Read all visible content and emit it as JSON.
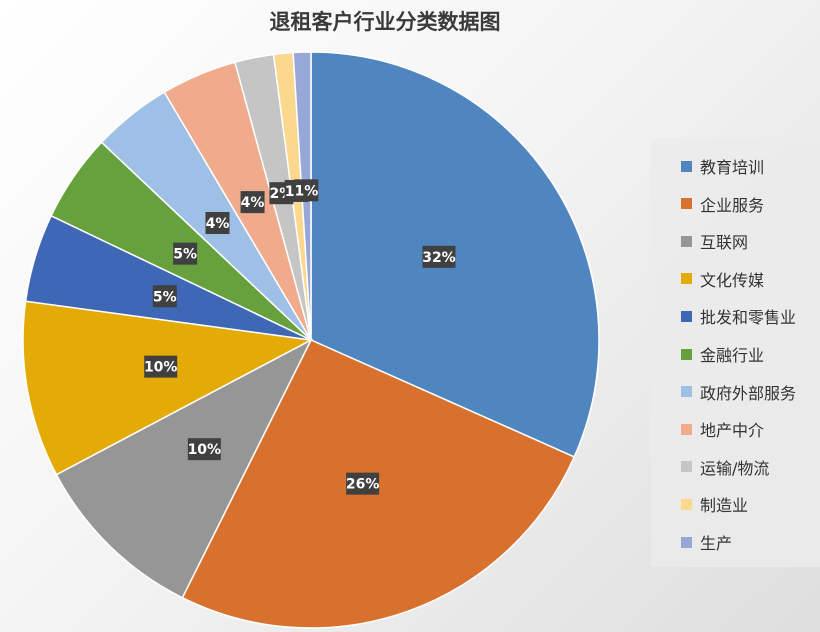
{
  "chart_data": {
    "type": "pie",
    "title": "退租客户行业分类数据图",
    "legend_position": "right",
    "slices": [
      {
        "label": "教育培训",
        "value": 32,
        "display": "32%",
        "color": "#4F86C0"
      },
      {
        "label": "企业服务",
        "value": 26,
        "display": "26%",
        "color": "#D9712E"
      },
      {
        "label": "互联网",
        "value": 10,
        "display": "10%",
        "color": "#969696"
      },
      {
        "label": "文化传媒",
        "value": 10,
        "display": "10%",
        "color": "#E4AA06"
      },
      {
        "label": "批发和零售业",
        "value": 5,
        "display": "5%",
        "color": "#3E68B6"
      },
      {
        "label": "金融行业",
        "value": 5,
        "display": "5%",
        "color": "#66A13E"
      },
      {
        "label": "政府外部服务",
        "value": 4.5,
        "display": "4%",
        "color": "#9EBFE6"
      },
      {
        "label": "地产中介",
        "value": 4.3,
        "display": "4%",
        "color": "#F0AB8D"
      },
      {
        "label": "运输/物流",
        "value": 2.2,
        "display": "2%",
        "color": "#C5C5C5"
      },
      {
        "label": "制造业",
        "value": 1.1,
        "display": "1%",
        "color": "#FCD78E"
      },
      {
        "label": "生产",
        "value": 1.0,
        "display": "1%",
        "color": "#97A8D8"
      }
    ]
  }
}
